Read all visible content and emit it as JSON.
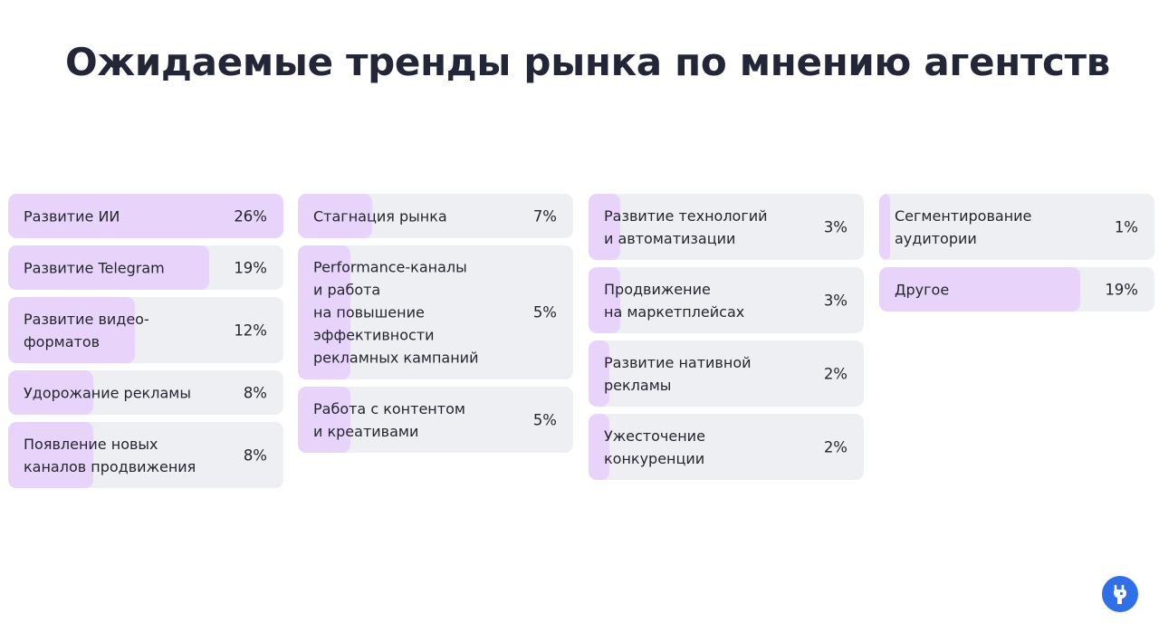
{
  "title": "Ожидаемые тренды рынка по мнению агентств",
  "colors": {
    "background": "#ffffff",
    "card": "#eeeff3",
    "bar": "#e8d4fa",
    "text": "#23262f",
    "logo": "#2f6fe8"
  },
  "logo_icon": "brand-logo-icon",
  "chart_data": {
    "type": "bar",
    "orientation": "horizontal",
    "unit": "%",
    "max_value": 26,
    "columns": [
      [
        {
          "label": "Развитие ИИ",
          "value": 26,
          "display": "26%"
        },
        {
          "label": "Развитие Telegram",
          "value": 19,
          "display": "19%"
        },
        {
          "label": "Развитие видео-\nформатов",
          "value": 12,
          "display": "12%"
        },
        {
          "label": "Удорожание рекламы",
          "value": 8,
          "display": "8%"
        },
        {
          "label": "Появление новых\nканалов продвижения",
          "value": 8,
          "display": "8%"
        }
      ],
      [
        {
          "label": "Стагнация рынка",
          "value": 7,
          "display": "7%"
        },
        {
          "label": "Performance-каналы\nи работа\nна повышение\nэффективности\nрекламных кампаний",
          "value": 5,
          "display": "5%"
        },
        {
          "label": "Работа с контентом\nи креативами",
          "value": 5,
          "display": "5%"
        }
      ],
      [
        {
          "label": "Развитие технологий\nи автоматизации",
          "value": 3,
          "display": "3%"
        },
        {
          "label": "Продвижение\nна маркетплейсах",
          "value": 3,
          "display": "3%"
        },
        {
          "label": "Развитие нативной\nрекламы",
          "value": 2,
          "display": "2%"
        },
        {
          "label": "Ужесточение\nконкуренции",
          "value": 2,
          "display": "2%"
        }
      ],
      [
        {
          "label": "Сегментирование\nаудитории",
          "value": 1,
          "display": "1%"
        },
        {
          "label": "Другое",
          "value": 19,
          "display": "19%"
        }
      ]
    ]
  }
}
